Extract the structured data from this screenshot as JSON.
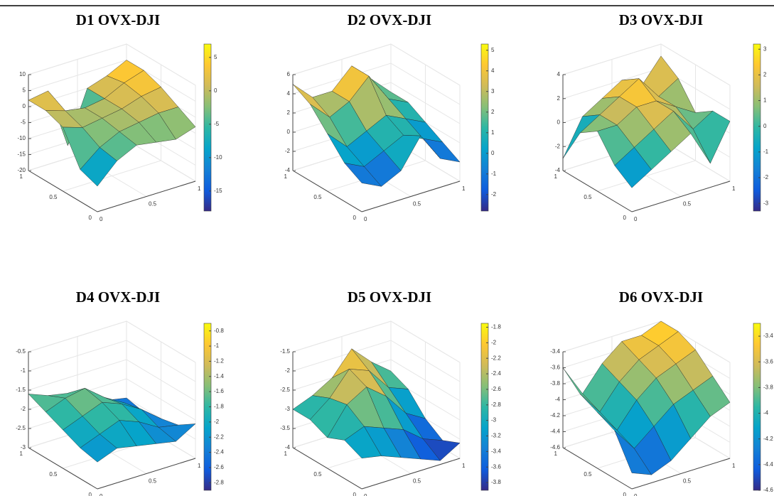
{
  "chart_data": [
    {
      "type": "surface",
      "title": "D1 OVX-DJI",
      "xlim": [
        0,
        1
      ],
      "ylim": [
        0,
        1
      ],
      "xticks": [
        0,
        0.5,
        1
      ],
      "yticks": [
        0,
        0.5,
        1
      ],
      "zlim": [
        -20,
        10
      ],
      "zticks": [
        10,
        5,
        0,
        -5,
        -10,
        -15,
        -20
      ],
      "clim": [
        -18,
        7
      ],
      "cticks": [
        5,
        0,
        -5,
        -10,
        -15
      ],
      "grid": true,
      "z": [
        [
          -12,
          -6,
          -3,
          -4,
          -5,
          -3
        ],
        [
          -10,
          -5,
          -2,
          -1,
          0,
          0
        ],
        [
          0,
          -2,
          -1,
          0,
          2,
          3
        ],
        [
          2,
          0,
          -1,
          0,
          3,
          5
        ],
        [
          2,
          3,
          -16,
          0,
          2,
          5
        ]
      ]
    },
    {
      "type": "surface",
      "title": "D2 OVX-DJI",
      "xlim": [
        0,
        1
      ],
      "ylim": [
        0,
        1
      ],
      "xticks": [
        0,
        0.5,
        1
      ],
      "yticks": [
        0,
        0.5,
        1
      ],
      "zlim": [
        -4,
        6
      ],
      "zticks": [
        6,
        4,
        2,
        0,
        -2,
        -4
      ],
      "clim": [
        -2.8,
        5.3
      ],
      "cticks": [
        5,
        4,
        3,
        2,
        1,
        0,
        -1,
        -2
      ],
      "grid": true,
      "z": [
        [
          -1,
          -2,
          -1,
          2,
          -1,
          -2
        ],
        [
          0,
          -1,
          0,
          1,
          0,
          -1
        ],
        [
          2,
          0,
          1,
          2,
          1,
          0
        ],
        [
          4,
          2,
          3,
          5,
          2,
          1
        ],
        [
          5,
          3,
          3,
          5,
          3,
          1
        ]
      ]
    },
    {
      "type": "surface",
      "title": "D3 OVX-DJI",
      "xlim": [
        0,
        1
      ],
      "ylim": [
        0,
        1
      ],
      "xticks": [
        0,
        0.5,
        1
      ],
      "yticks": [
        0,
        0.5,
        1
      ],
      "zlim": [
        -4,
        4
      ],
      "zticks": [
        4,
        2,
        0,
        -2,
        -4
      ],
      "clim": [
        -3.3,
        3.2
      ],
      "cticks": [
        3,
        2,
        1,
        0,
        -1,
        -2,
        -3
      ],
      "grid": true,
      "z": [
        [
          -2,
          -1,
          0,
          1,
          -2,
          1
        ],
        [
          -1,
          0,
          1,
          2,
          0,
          1
        ],
        [
          1,
          1,
          2,
          2,
          1,
          0
        ],
        [
          0,
          1,
          2,
          3,
          1,
          2
        ],
        [
          -3,
          0,
          1,
          2,
          1,
          3
        ]
      ]
    },
    {
      "type": "surface",
      "title": "D4 OVX-DJI",
      "xlim": [
        0,
        1
      ],
      "ylim": [
        0,
        1
      ],
      "xticks": [
        0,
        0.5,
        1
      ],
      "yticks": [
        0,
        0.5,
        1
      ],
      "zlim": [
        -3,
        -0.5
      ],
      "zticks": [
        -0.5,
        -1,
        -1.5,
        -2,
        -2.5,
        -3
      ],
      "clim": [
        -2.9,
        -0.7
      ],
      "cticks": [
        -0.8,
        -1,
        -1.2,
        -1.4,
        -1.6,
        -1.8,
        -2,
        -2.2,
        -2.4,
        -2.6,
        -2.8
      ],
      "grid": true,
      "z": [
        [
          -2.3,
          -2.1,
          -2.2,
          -2.3,
          -2.4,
          -2.1
        ],
        [
          -2.2,
          -2,
          -1.8,
          -2,
          -2.3,
          -2.4
        ],
        [
          -2,
          -1.8,
          -1.6,
          -1.8,
          -2.1,
          -2.5
        ],
        [
          -1.8,
          -1.6,
          -1.5,
          -1.9,
          -2.2,
          -2.6
        ],
        [
          -1.6,
          -1.8,
          -1.9,
          -2.2,
          -2.4,
          -2.5
        ]
      ]
    },
    {
      "type": "surface",
      "title": "D5 OVX-DJI",
      "xlim": [
        0,
        1
      ],
      "ylim": [
        0,
        1
      ],
      "xticks": [
        0,
        0.5,
        1
      ],
      "yticks": [
        0,
        0.5,
        1
      ],
      "zlim": [
        -4,
        -1.5
      ],
      "zticks": [
        -1.5,
        -2,
        -2.5,
        -3,
        -3.5,
        -4
      ],
      "clim": [
        -3.9,
        -1.75
      ],
      "cticks": [
        -1.8,
        -2,
        -2.2,
        -2.4,
        -2.6,
        -2.8,
        -3,
        -3.2,
        -3.4,
        -3.6,
        -3.8
      ],
      "grid": true,
      "z": [
        [
          -3.2,
          -3.3,
          -3.5,
          -3.7,
          -3.9,
          -3.6
        ],
        [
          -3,
          -2.8,
          -3,
          -3.2,
          -3.6,
          -3.8
        ],
        [
          -3.2,
          -2.5,
          -2.2,
          -2.6,
          -3.2,
          -3.5
        ],
        [
          -3,
          -2.6,
          -2,
          -2.2,
          -2.8,
          -3
        ],
        [
          -3,
          -2.8,
          -2.5,
          -1.9,
          -2.4,
          -2.8
        ]
      ]
    },
    {
      "type": "surface",
      "title": "D6 OVX-DJI",
      "xlim": [
        0,
        1
      ],
      "ylim": [
        0,
        1
      ],
      "xticks": [
        0,
        0.5,
        1
      ],
      "yticks": [
        0,
        0.5,
        1
      ],
      "zlim": [
        -4.6,
        -3.4
      ],
      "zticks": [
        -3.4,
        -3.6,
        -3.8,
        -4,
        -4.2,
        -4.4,
        -4.6
      ],
      "clim": [
        -4.6,
        -3.3
      ],
      "cticks": [
        -3.4,
        -3.6,
        -3.8,
        -4,
        -4.2,
        -4.4,
        -4.6
      ],
      "grid": true,
      "z": [
        [
          -4.4,
          -4.5,
          -4.4,
          -4.2,
          -4,
          -3.9
        ],
        [
          -4,
          -4.3,
          -4.1,
          -3.9,
          -3.8,
          -3.7
        ],
        [
          -3.9,
          -4.2,
          -3.9,
          -3.7,
          -3.6,
          -3.5
        ],
        [
          -3.8,
          -4.1,
          -3.8,
          -3.6,
          -3.5,
          -3.4
        ],
        [
          -3.6,
          -4,
          -3.7,
          -3.5,
          -3.5,
          -3.4
        ]
      ]
    }
  ]
}
